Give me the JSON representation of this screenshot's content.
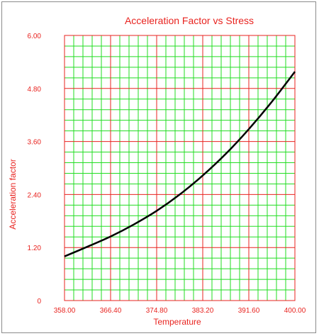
{
  "chart_data": {
    "type": "line",
    "title": "Acceleration Factor vs Stress",
    "xlabel": "Temperature",
    "ylabel": "Acceleration factor",
    "xlim": [
      358,
      400
    ],
    "ylim": [
      0,
      6
    ],
    "x_ticks": [
      "358.00",
      "366.40",
      "374.80",
      "383.20",
      "391.60",
      "400.00"
    ],
    "y_ticks": [
      "0",
      "1.20",
      "2.40",
      "3.60",
      "4.80",
      "6.00"
    ],
    "grid": true,
    "colors": {
      "text": "#e8231f",
      "major_grid": "#e8231f",
      "minor_grid": "#22dd22",
      "line": "#000000"
    },
    "series": [
      {
        "x": [
          358,
          362.2,
          366.4,
          370.6,
          374.8,
          379,
          383.2,
          387.4,
          391.6,
          395.8,
          400
        ],
        "y": [
          1.0,
          1.22,
          1.45,
          1.72,
          2.03,
          2.4,
          2.83,
          3.32,
          3.88,
          4.5,
          5.18
        ]
      }
    ]
  }
}
